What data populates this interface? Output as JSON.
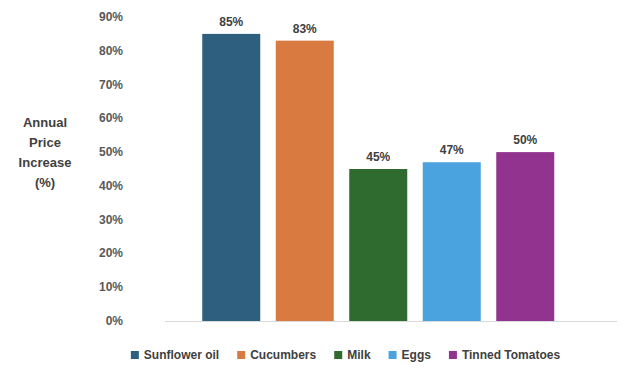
{
  "chart_data": {
    "type": "bar",
    "y_label": "Annual Price Increase (%)",
    "categories": [
      "Sunflower oil",
      "Cucumbers",
      "Milk",
      "Eggs",
      "Tinned Tomatoes"
    ],
    "values": [
      85,
      83,
      45,
      47,
      50
    ],
    "value_labels": [
      "85%",
      "83%",
      "45%",
      "47%",
      "50%"
    ],
    "colors": [
      "#2e5f7f",
      "#d97b40",
      "#2f6b2f",
      "#4aa3df",
      "#92338f"
    ],
    "ylim": [
      0,
      90
    ],
    "yticks": [
      {
        "value": 0,
        "label": "0%"
      },
      {
        "value": 10,
        "label": "10%"
      },
      {
        "value": 20,
        "label": "20%"
      },
      {
        "value": 30,
        "label": "30%"
      },
      {
        "value": 40,
        "label": "40%"
      },
      {
        "value": 50,
        "label": "50%"
      },
      {
        "value": 60,
        "label": "60%"
      },
      {
        "value": 70,
        "label": "70%"
      },
      {
        "value": 80,
        "label": "80%"
      },
      {
        "value": 90,
        "label": "90%"
      }
    ],
    "grid": false,
    "legend": "bottom",
    "data_labels": true,
    "tick_labels": "y"
  }
}
